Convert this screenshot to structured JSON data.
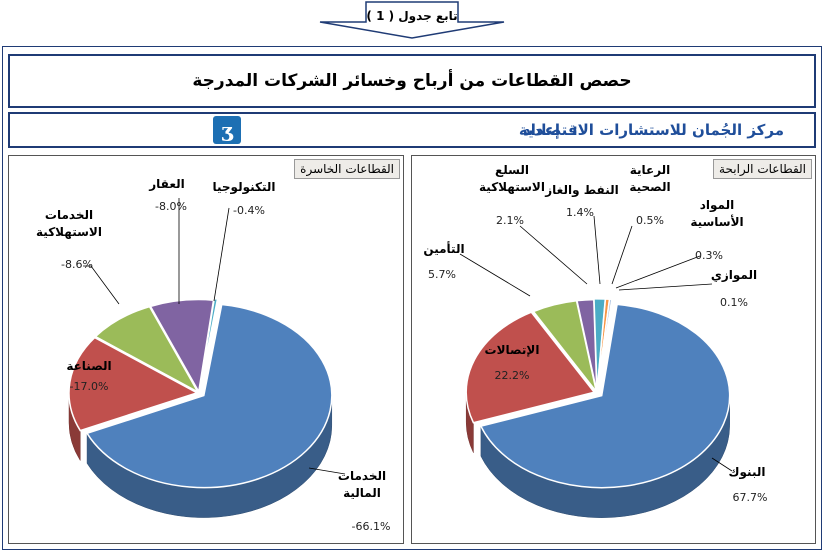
{
  "header": {
    "continuation": "تابع جدول ( 1 )",
    "title": "حصص القطاعات من أرباح وخسائر الشركات المدرجة",
    "credit_label": "إعداد",
    "credit_separator": ":",
    "credit_org": "مركز الجُمان للاستشارات الاقتصادية",
    "logo_icon": "jumman-logo-icon"
  },
  "colors": {
    "frame": "#1f3b75",
    "credit_text": "#1f4e9a"
  },
  "chart_data": [
    {
      "type": "pie",
      "panel_title": "القطاعات الخاسرة",
      "slices": [
        {
          "label": "الخدمات المالية",
          "value": -66.1,
          "value_text": "-66.1%",
          "color": "#4f81bd"
        },
        {
          "label": "الصناعة",
          "value": -17.0,
          "value_text": "-17.0%",
          "color": "#c0504d"
        },
        {
          "label": "الخدمات الاستهلاكية",
          "value": -8.6,
          "value_text": "-8.6%",
          "color": "#9bbb59"
        },
        {
          "label": "العقار",
          "value": -8.0,
          "value_text": "-8.0%",
          "color": "#8064a2"
        },
        {
          "label": "التكنولوجيا",
          "value": -0.4,
          "value_text": "-0.4%",
          "color": "#4bacc6"
        }
      ]
    },
    {
      "type": "pie",
      "panel_title": "القطاعات الرابحة",
      "slices": [
        {
          "label": "البنوك",
          "value": 67.7,
          "value_text": "67.7%",
          "color": "#4f81bd"
        },
        {
          "label": "الإتصالات",
          "value": 22.2,
          "value_text": "22.2%",
          "color": "#c0504d"
        },
        {
          "label": "التأمين",
          "value": 5.7,
          "value_text": "5.7%",
          "color": "#9bbb59"
        },
        {
          "label": "السلع الاستهلاكية",
          "value": 2.1,
          "value_text": "2.1%",
          "color": "#8064a2"
        },
        {
          "label": "النفط والغاز",
          "value": 1.4,
          "value_text": "1.4%",
          "color": "#4bacc6"
        },
        {
          "label": "الرعاية الصحية",
          "value": 0.5,
          "value_text": "0.5%",
          "color": "#f79646"
        },
        {
          "label": "المواد الأساسية",
          "value": 0.3,
          "value_text": "0.3%",
          "color": "#a8c0e0"
        },
        {
          "label": "الموازي",
          "value": 0.1,
          "value_text": "0.1%",
          "color": "#e8a4a2"
        }
      ]
    }
  ]
}
